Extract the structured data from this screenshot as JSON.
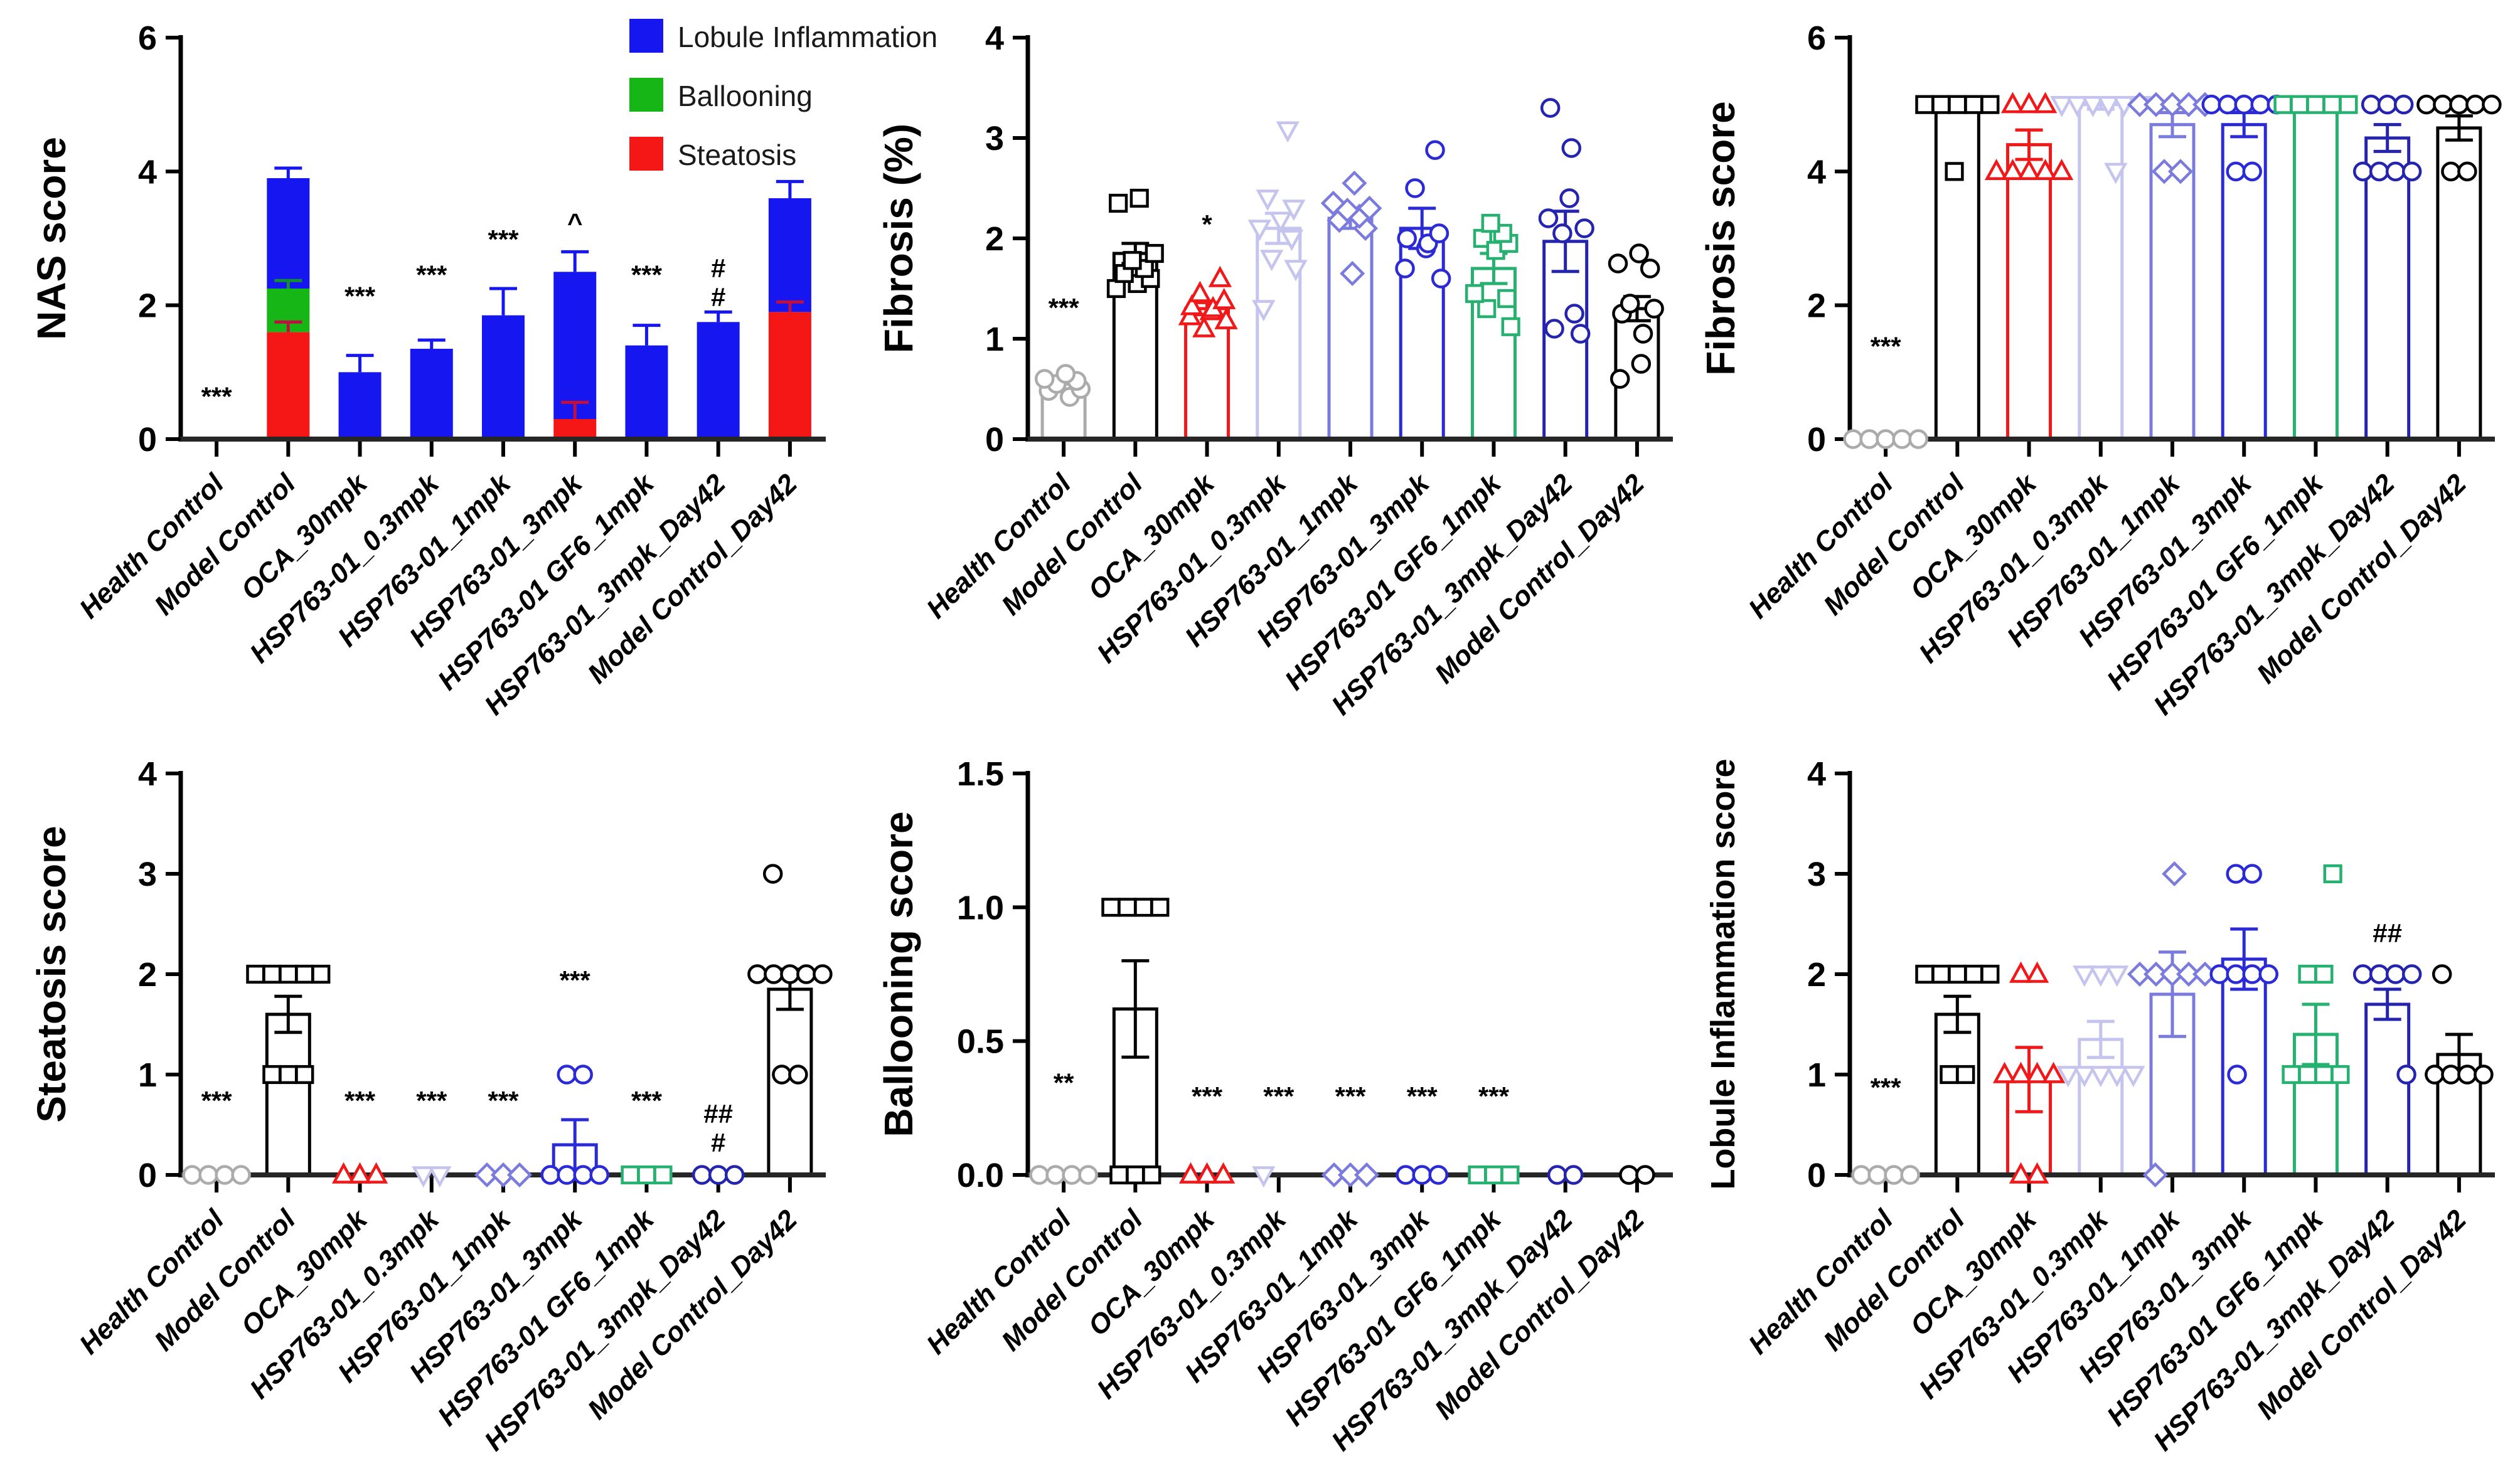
{
  "figure": {
    "background": "#ffffff"
  },
  "groups": {
    "labels": [
      "Health Control",
      "Model Control",
      "OCA_30mpk",
      "HSP763-01_0.3mpk",
      "HSP763-01_1mpk",
      "HSP763-01_3mpk",
      "HSP763-01 GF6_1mpk",
      "HSP763-01_3mpk_Day42",
      "Model Control_Day42"
    ],
    "colors": [
      "#ABABAB",
      "#000000",
      "#F01818",
      "#C4C4EE",
      "#7B7BDE",
      "#2B2BD6",
      "#26B170",
      "#2424AE",
      "#000000"
    ],
    "shapes": [
      "circle",
      "square",
      "triangle-up",
      "triangle-down",
      "diamond",
      "circle",
      "square",
      "circle",
      "circle"
    ]
  },
  "chart_data": [
    {
      "id": "nas-score",
      "type": "stacked",
      "title": "",
      "ylabel": "NAS score",
      "xlabel": "",
      "ylim": [
        0,
        6
      ],
      "yticks": [
        0,
        2,
        4,
        6
      ],
      "ytick_labels": [
        "0",
        "2",
        "4",
        "6"
      ],
      "grid": false,
      "legend_position": "top-right",
      "stack_series": [
        {
          "name": "Steatosis",
          "color": "#F51616"
        },
        {
          "name": "Ballooning",
          "color": "#16B616"
        },
        {
          "name": "Lobule Inflammation",
          "color": "#1616F0"
        }
      ],
      "legend": [
        {
          "label": "Lobule Inflammation",
          "color": "#1616F0"
        },
        {
          "label": "Ballooning",
          "color": "#16B616"
        },
        {
          "label": "Steatosis",
          "color": "#F51616"
        }
      ],
      "bars": [
        {
          "segments": [
            0,
            0,
            0
          ],
          "err": 0,
          "marker": "***",
          "marker_y": 0.5
        },
        {
          "segments": [
            1.6,
            0.65,
            1.65
          ],
          "err": 0.15,
          "seg_errs": [
            {
              "at": 1.6,
              "err": 0.15,
              "color": "#C01040"
            },
            {
              "at": 2.25,
              "err": 0.12,
              "color": "#109030"
            }
          ]
        },
        {
          "segments": [
            0,
            0,
            1.0
          ],
          "err": 0.25,
          "marker": "***",
          "marker_y": 2.0
        },
        {
          "segments": [
            0,
            0,
            1.35
          ],
          "err": 0.13,
          "marker": "***",
          "marker_y": 2.32
        },
        {
          "segments": [
            0,
            0,
            1.85
          ],
          "err": 0.4,
          "marker": "***",
          "marker_y": 2.85
        },
        {
          "segments": [
            0.3,
            0,
            2.2
          ],
          "err": 0.3,
          "marker": "^",
          "marker_y": 3.1,
          "seg_errs": [
            {
              "at": 0.3,
              "err": 0.25,
              "color": "#C01040"
            }
          ]
        },
        {
          "segments": [
            0,
            0,
            1.4
          ],
          "err": 0.3,
          "marker": "***",
          "marker_y": 2.32
        },
        {
          "segments": [
            0,
            0,
            1.75
          ],
          "err": 0.15,
          "marker": "#\n#",
          "marker_y": 2.42
        },
        {
          "segments": [
            1.9,
            0,
            1.7
          ],
          "err": 0.25,
          "seg_errs": [
            {
              "at": 1.9,
              "err": 0.15,
              "color": "#C01040"
            }
          ]
        }
      ]
    },
    {
      "id": "fibrosis-percent",
      "type": "scatter-bar",
      "title": "",
      "ylabel": "Fibrosis (%)",
      "xlabel": "",
      "ylim": [
        0,
        4
      ],
      "yticks": [
        0,
        1,
        2,
        3,
        4
      ],
      "ytick_labels": [
        "0",
        "1",
        "2",
        "3",
        "4"
      ],
      "grid": false,
      "bars": [
        {
          "mean": 0.55,
          "sem": 0.06,
          "marker": "***",
          "marker_y": 1.22,
          "points": [
            0.42,
            0.48,
            0.5,
            0.55,
            0.58,
            0.6,
            0.65
          ]
        },
        {
          "mean": 1.85,
          "sem": 0.1,
          "points": [
            1.5,
            1.55,
            1.6,
            1.65,
            1.7,
            1.78,
            1.85,
            2.35,
            2.4
          ]
        },
        {
          "mean": 1.3,
          "sem": 0.06,
          "marker": "*",
          "marker_y": 2.05,
          "points": [
            1.1,
            1.18,
            1.22,
            1.27,
            1.3,
            1.32,
            1.38,
            1.45,
            1.6
          ]
        },
        {
          "mean": 2.1,
          "sem": 0.15,
          "points": [
            1.3,
            1.7,
            1.8,
            2.0,
            2.1,
            2.18,
            2.3,
            2.4,
            3.08
          ]
        },
        {
          "mean": 2.2,
          "sem": 0.1,
          "points": [
            1.65,
            2.1,
            2.18,
            2.22,
            2.28,
            2.3,
            2.35,
            2.55
          ]
        },
        {
          "mean": 2.1,
          "sem": 0.2,
          "points": [
            1.6,
            1.7,
            1.9,
            1.95,
            2.0,
            2.05,
            2.5,
            2.88
          ]
        },
        {
          "mean": 1.7,
          "sem": 0.15,
          "points": [
            1.12,
            1.3,
            1.4,
            1.45,
            1.88,
            1.95,
            2.0,
            2.05,
            2.15
          ]
        },
        {
          "mean": 1.97,
          "sem": 0.3,
          "points": [
            1.05,
            1.1,
            1.25,
            2.05,
            2.1,
            2.2,
            2.4,
            2.9,
            3.3
          ]
        },
        {
          "mean": 1.3,
          "sem": 0.12,
          "points": [
            0.6,
            0.75,
            1.05,
            1.25,
            1.3,
            1.35,
            1.7,
            1.75,
            1.85
          ]
        }
      ]
    },
    {
      "id": "fibrosis-score",
      "type": "scatter-bar",
      "title": "",
      "ylabel": "Fibrosis score",
      "xlabel": "",
      "ylim": [
        0,
        6
      ],
      "yticks": [
        0,
        2,
        4,
        6
      ],
      "ytick_labels": [
        "0",
        "2",
        "4",
        "6"
      ],
      "grid": false,
      "bars": [
        {
          "mean": 0,
          "sem": 0,
          "marker": "***",
          "marker_y": 1.25,
          "points": [
            0,
            0,
            0,
            0,
            0
          ]
        },
        {
          "mean": 5.0,
          "sem": 0.08,
          "points": [
            5,
            5,
            5,
            5,
            5,
            4
          ]
        },
        {
          "mean": 4.4,
          "sem": 0.22,
          "points": [
            5,
            5,
            5,
            4,
            4,
            4,
            4,
            4
          ]
        },
        {
          "mean": 5.0,
          "sem": 0.07,
          "points": [
            5,
            5,
            5,
            5,
            5,
            5,
            4
          ]
        },
        {
          "mean": 4.7,
          "sem": 0.18,
          "points": [
            5,
            5,
            5,
            5,
            5,
            4,
            4
          ]
        },
        {
          "mean": 4.7,
          "sem": 0.18,
          "points": [
            5,
            5,
            5,
            5,
            5,
            4,
            4
          ]
        },
        {
          "mean": 5.05,
          "sem": 0,
          "points": [
            5,
            5,
            5,
            5,
            5
          ]
        },
        {
          "mean": 4.5,
          "sem": 0.2,
          "points": [
            5,
            5,
            5,
            4,
            4,
            4,
            4
          ]
        },
        {
          "mean": 4.65,
          "sem": 0.18,
          "points": [
            5,
            5,
            5,
            5,
            5,
            4,
            4
          ]
        }
      ]
    },
    {
      "id": "steatosis-score",
      "type": "scatter-bar",
      "title": "",
      "ylabel": "Steatosis score",
      "xlabel": "",
      "ylim": [
        0,
        4
      ],
      "yticks": [
        0,
        1,
        2,
        3,
        4
      ],
      "ytick_labels": [
        "0",
        "1",
        "2",
        "3",
        "4"
      ],
      "grid": false,
      "bars": [
        {
          "mean": 0,
          "sem": 0,
          "marker": "***",
          "marker_y": 0.65,
          "points": [
            0,
            0,
            0,
            0
          ]
        },
        {
          "mean": 1.6,
          "sem": 0.18,
          "points": [
            2,
            2,
            2,
            2,
            2,
            1,
            1,
            1
          ]
        },
        {
          "mean": 0,
          "sem": 0,
          "marker": "***",
          "marker_y": 0.65,
          "points": [
            0,
            0,
            0
          ]
        },
        {
          "mean": 0,
          "sem": 0,
          "marker": "***",
          "marker_y": 0.65,
          "points": [
            0,
            0
          ]
        },
        {
          "mean": 0,
          "sem": 0,
          "marker": "***",
          "marker_y": 0.65,
          "points": [
            0,
            0,
            0
          ]
        },
        {
          "mean": 0.3,
          "sem": 0.25,
          "marker": "***",
          "marker_y": 1.85,
          "points": [
            1,
            1,
            0,
            0,
            0,
            0
          ]
        },
        {
          "mean": 0,
          "sem": 0,
          "marker": "***",
          "marker_y": 0.65,
          "points": [
            0,
            0,
            0
          ]
        },
        {
          "mean": 0,
          "sem": 0,
          "marker": "##\n#",
          "marker_y": 0.52,
          "points": [
            0,
            0,
            0
          ]
        },
        {
          "mean": 1.85,
          "sem": 0.2,
          "points": [
            3,
            2,
            2,
            2,
            2,
            2,
            1,
            1
          ]
        }
      ]
    },
    {
      "id": "ballooning-score",
      "type": "scatter-bar",
      "title": "",
      "ylabel": "Ballooning score",
      "xlabel": "",
      "ylim": [
        0,
        1.5
      ],
      "yticks": [
        0,
        0.5,
        1,
        1.5
      ],
      "ytick_labels": [
        "0.0",
        "0.5",
        "1.0",
        "1.5"
      ],
      "grid": false,
      "bars": [
        {
          "mean": 0,
          "sem": 0,
          "marker": "**",
          "marker_y": 0.31,
          "points": [
            0,
            0,
            0,
            0
          ]
        },
        {
          "mean": 0.62,
          "sem": 0.18,
          "points": [
            1,
            1,
            1,
            1,
            0,
            0,
            0
          ]
        },
        {
          "mean": 0,
          "sem": 0,
          "marker": "***",
          "marker_y": 0.26,
          "points": [
            0,
            0,
            0
          ]
        },
        {
          "mean": 0,
          "sem": 0,
          "marker": "***",
          "marker_y": 0.26,
          "points": [
            0
          ]
        },
        {
          "mean": 0,
          "sem": 0,
          "marker": "***",
          "marker_y": 0.26,
          "points": [
            0,
            0,
            0
          ]
        },
        {
          "mean": 0,
          "sem": 0,
          "marker": "***",
          "marker_y": 0.26,
          "points": [
            0,
            0,
            0
          ]
        },
        {
          "mean": 0,
          "sem": 0,
          "marker": "***",
          "marker_y": 0.26,
          "points": [
            0,
            0,
            0
          ]
        },
        {
          "mean": 0,
          "sem": 0,
          "points": [
            0,
            0
          ]
        },
        {
          "mean": 0,
          "sem": 0,
          "points": [
            0,
            0
          ]
        }
      ]
    },
    {
      "id": "lobule-inflammation-score",
      "type": "scatter-bar",
      "title": "",
      "ylabel": "Lobule Inflammation score",
      "xlabel": "",
      "ylim": [
        0,
        4
      ],
      "yticks": [
        0,
        1,
        2,
        3,
        4
      ],
      "ytick_labels": [
        "0",
        "1",
        "2",
        "3",
        "4"
      ],
      "grid": false,
      "bars": [
        {
          "mean": 0,
          "sem": 0,
          "marker": "***",
          "marker_y": 0.78,
          "points": [
            0,
            0,
            0,
            0
          ]
        },
        {
          "mean": 1.6,
          "sem": 0.18,
          "points": [
            2,
            2,
            2,
            2,
            2,
            1,
            1
          ]
        },
        {
          "mean": 0.95,
          "sem": 0.32,
          "points": [
            2,
            2,
            1,
            1,
            1,
            1,
            0,
            0
          ]
        },
        {
          "mean": 1.35,
          "sem": 0.18,
          "points": [
            2,
            2,
            2,
            1,
            1,
            1,
            1,
            1
          ]
        },
        {
          "mean": 1.8,
          "sem": 0.42,
          "points": [
            3,
            2,
            2,
            2,
            2,
            2,
            0
          ]
        },
        {
          "mean": 2.15,
          "sem": 0.3,
          "points": [
            3,
            3,
            2,
            2,
            2,
            2,
            1
          ]
        },
        {
          "mean": 1.4,
          "sem": 0.3,
          "points": [
            3,
            2,
            2,
            1,
            1,
            1,
            1
          ]
        },
        {
          "mean": 1.7,
          "sem": 0.15,
          "marker": "##",
          "marker_y": 2.32,
          "points": [
            2,
            2,
            2,
            2,
            1
          ]
        },
        {
          "mean": 1.2,
          "sem": 0.2,
          "points": [
            2,
            1,
            1,
            1,
            1
          ]
        }
      ]
    }
  ]
}
